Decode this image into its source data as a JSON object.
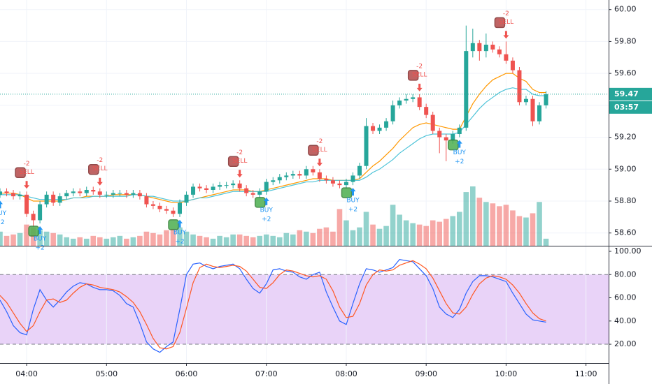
{
  "chart_data": {
    "type": "candlestick",
    "x": [
      "03:40",
      "03:45",
      "03:50",
      "03:55",
      "04:00",
      "04:05",
      "04:10",
      "04:15",
      "04:20",
      "04:25",
      "04:30",
      "04:35",
      "04:40",
      "04:45",
      "04:50",
      "04:55",
      "05:00",
      "05:05",
      "05:10",
      "05:15",
      "05:20",
      "05:25",
      "05:30",
      "05:35",
      "05:40",
      "05:45",
      "05:50",
      "05:55",
      "06:00",
      "06:05",
      "06:10",
      "06:15",
      "06:20",
      "06:25",
      "06:30",
      "06:35",
      "06:40",
      "06:45",
      "06:50",
      "06:55",
      "07:00",
      "07:05",
      "07:10",
      "07:15",
      "07:20",
      "07:25",
      "07:30",
      "07:35",
      "07:40",
      "07:45",
      "07:50",
      "07:55",
      "08:00",
      "08:05",
      "08:10",
      "08:15",
      "08:20",
      "08:25",
      "08:30",
      "08:35",
      "08:40",
      "08:45",
      "08:50",
      "08:55",
      "09:00",
      "09:05",
      "09:10",
      "09:15",
      "09:20",
      "09:25",
      "09:30",
      "09:35",
      "09:40",
      "09:45",
      "09:50",
      "09:55",
      "10:00",
      "10:05",
      "10:10",
      "10:15",
      "10:20",
      "10:25",
      "10:30"
    ],
    "open": [
      58.84,
      58.86,
      58.85,
      58.83,
      58.84,
      58.72,
      58.68,
      58.78,
      58.84,
      58.79,
      58.83,
      58.85,
      58.86,
      58.85,
      58.87,
      58.86,
      58.84,
      58.84,
      58.85,
      58.85,
      58.84,
      58.85,
      58.83,
      58.78,
      58.77,
      58.75,
      58.74,
      58.72,
      58.79,
      58.84,
      58.89,
      58.88,
      58.87,
      58.89,
      58.9,
      58.9,
      58.91,
      58.88,
      58.85,
      58.84,
      58.86,
      58.92,
      58.93,
      58.95,
      58.96,
      58.97,
      58.96,
      59.0,
      58.98,
      58.94,
      58.93,
      58.91,
      58.9,
      58.92,
      58.96,
      59.02,
      59.27,
      59.24,
      59.26,
      59.3,
      59.4,
      59.43,
      59.44,
      59.45,
      59.39,
      59.34,
      59.24,
      59.2,
      59.18,
      59.22,
      59.26,
      59.74,
      59.79,
      59.74,
      59.78,
      59.75,
      59.72,
      59.68,
      59.62,
      59.42,
      59.44,
      59.3,
      59.4
    ],
    "high": [
      58.88,
      58.88,
      58.87,
      58.86,
      58.86,
      58.74,
      58.8,
      58.86,
      58.86,
      58.85,
      58.87,
      58.88,
      58.88,
      58.89,
      58.89,
      58.88,
      58.86,
      58.87,
      58.87,
      58.87,
      58.87,
      58.87,
      58.85,
      58.8,
      58.79,
      58.77,
      58.76,
      58.81,
      58.86,
      58.91,
      58.91,
      58.9,
      58.91,
      58.92,
      58.92,
      58.93,
      58.93,
      58.9,
      58.87,
      58.88,
      58.94,
      58.95,
      58.97,
      58.98,
      58.99,
      58.99,
      59.02,
      59.02,
      59.0,
      58.96,
      58.95,
      58.93,
      58.94,
      58.98,
      59.04,
      59.32,
      59.29,
      59.28,
      59.32,
      59.43,
      59.45,
      59.47,
      59.47,
      59.47,
      59.41,
      59.36,
      59.26,
      59.22,
      59.24,
      59.28,
      59.9,
      59.88,
      59.81,
      59.85,
      59.8,
      59.77,
      59.8,
      59.7,
      59.64,
      59.46,
      59.46,
      59.42,
      59.49
    ],
    "low": [
      58.82,
      58.83,
      58.81,
      58.81,
      58.7,
      58.64,
      58.66,
      58.76,
      58.77,
      58.77,
      58.81,
      58.83,
      58.83,
      58.83,
      58.84,
      58.82,
      58.82,
      58.82,
      58.83,
      58.82,
      58.82,
      58.81,
      58.76,
      58.75,
      58.73,
      58.72,
      58.7,
      58.7,
      58.77,
      58.82,
      58.86,
      58.85,
      58.85,
      58.87,
      58.88,
      58.88,
      58.86,
      58.83,
      58.82,
      58.82,
      58.84,
      58.9,
      58.91,
      58.93,
      58.94,
      58.94,
      58.94,
      58.96,
      58.92,
      58.91,
      58.89,
      58.88,
      58.88,
      58.9,
      58.94,
      59.0,
      59.22,
      59.22,
      59.24,
      59.28,
      59.38,
      59.41,
      59.42,
      59.37,
      59.32,
      59.22,
      59.1,
      59.05,
      59.16,
      59.2,
      59.24,
      59.7,
      59.68,
      59.7,
      59.73,
      59.7,
      59.66,
      59.6,
      59.4,
      59.4,
      59.27,
      59.28,
      59.38
    ],
    "close": [
      58.86,
      58.85,
      58.83,
      58.84,
      58.72,
      58.68,
      58.78,
      58.84,
      58.79,
      58.83,
      58.85,
      58.86,
      58.85,
      58.87,
      58.86,
      58.84,
      58.84,
      58.85,
      58.85,
      58.84,
      58.85,
      58.83,
      58.78,
      58.77,
      58.75,
      58.74,
      58.72,
      58.79,
      58.84,
      58.89,
      58.88,
      58.87,
      58.89,
      58.9,
      58.9,
      58.91,
      58.88,
      58.85,
      58.84,
      58.86,
      58.92,
      58.93,
      58.95,
      58.96,
      58.97,
      58.96,
      59.0,
      58.98,
      58.94,
      58.93,
      58.91,
      58.9,
      58.92,
      58.96,
      59.02,
      59.27,
      59.24,
      59.26,
      59.3,
      59.4,
      59.43,
      59.44,
      59.45,
      59.39,
      59.34,
      59.24,
      59.2,
      59.18,
      59.22,
      59.26,
      59.74,
      59.79,
      59.74,
      59.78,
      59.75,
      59.72,
      59.68,
      59.62,
      59.42,
      59.44,
      59.3,
      59.4,
      59.47
    ],
    "volume": [
      20,
      14,
      16,
      18,
      30,
      26,
      22,
      20,
      18,
      16,
      12,
      10,
      12,
      10,
      14,
      12,
      10,
      12,
      14,
      10,
      12,
      14,
      20,
      18,
      16,
      22,
      24,
      26,
      20,
      16,
      14,
      12,
      10,
      14,
      12,
      16,
      16,
      14,
      12,
      14,
      16,
      14,
      12,
      18,
      16,
      22,
      20,
      18,
      24,
      26,
      20,
      52,
      36,
      22,
      26,
      48,
      30,
      24,
      28,
      58,
      44,
      36,
      32,
      30,
      28,
      36,
      34,
      38,
      42,
      48,
      76,
      84,
      68,
      62,
      60,
      56,
      58,
      50,
      42,
      40,
      46,
      62,
      10
    ],
    "up_color": "#26a69a",
    "down_color": "#ef5350",
    "moving_averages": [
      {
        "color": "#ff9800",
        "values": [
          58.85,
          58.85,
          58.85,
          58.84,
          58.82,
          58.8,
          58.8,
          58.8,
          58.8,
          58.8,
          58.81,
          58.82,
          58.82,
          58.83,
          58.83,
          58.83,
          58.83,
          58.84,
          58.84,
          58.84,
          58.84,
          58.84,
          58.83,
          58.82,
          58.81,
          58.8,
          58.79,
          58.79,
          58.8,
          58.81,
          58.82,
          58.83,
          58.84,
          58.85,
          58.86,
          58.87,
          58.87,
          58.87,
          58.86,
          58.86,
          58.87,
          58.88,
          58.89,
          58.9,
          58.91,
          58.92,
          58.93,
          58.94,
          58.94,
          58.94,
          58.93,
          58.93,
          58.93,
          58.93,
          58.94,
          58.98,
          59.02,
          59.05,
          59.09,
          59.13,
          59.18,
          59.22,
          59.26,
          59.28,
          59.29,
          59.28,
          59.27,
          59.26,
          59.25,
          59.25,
          59.33,
          59.41,
          59.47,
          59.52,
          59.56,
          59.58,
          59.6,
          59.6,
          59.57,
          59.55,
          59.5,
          59.48,
          59.48
        ]
      },
      {
        "color": "#4dc3d8",
        "values": [
          58.84,
          58.84,
          58.84,
          58.84,
          58.83,
          58.82,
          58.81,
          58.81,
          58.81,
          58.81,
          58.81,
          58.82,
          58.82,
          58.82,
          58.83,
          58.83,
          58.83,
          58.83,
          58.83,
          58.83,
          58.84,
          58.84,
          58.83,
          58.83,
          58.82,
          58.81,
          58.8,
          58.8,
          58.8,
          58.81,
          58.82,
          58.82,
          58.83,
          58.84,
          58.85,
          58.86,
          58.86,
          58.86,
          58.86,
          58.86,
          58.86,
          58.87,
          58.88,
          58.89,
          58.9,
          58.91,
          58.92,
          58.92,
          58.93,
          58.93,
          58.93,
          58.93,
          58.93,
          58.93,
          58.93,
          58.95,
          58.98,
          59.0,
          59.03,
          59.06,
          59.1,
          59.13,
          59.16,
          59.19,
          59.21,
          59.22,
          59.22,
          59.22,
          59.22,
          59.23,
          59.28,
          59.33,
          59.38,
          59.42,
          59.45,
          59.48,
          59.5,
          59.51,
          59.5,
          59.5,
          59.47,
          59.46,
          59.46
        ]
      }
    ],
    "signals": [
      {
        "time": "03:40",
        "label": "BUY",
        "qty": "+2"
      },
      {
        "time": "04:00",
        "label": "SELL",
        "qty": "-2"
      },
      {
        "time": "04:10",
        "label": "BUY",
        "qty": "+2"
      },
      {
        "time": "04:55",
        "label": "SELL",
        "qty": "-2"
      },
      {
        "time": "05:55",
        "label": "BUY",
        "qty": "+2"
      },
      {
        "time": "06:40",
        "label": "SELL",
        "qty": "-2"
      },
      {
        "time": "07:00",
        "label": "BUY",
        "qty": "+2"
      },
      {
        "time": "07:40",
        "label": "SELL",
        "qty": "-2"
      },
      {
        "time": "08:05",
        "label": "BUY",
        "qty": "+2"
      },
      {
        "time": "08:55",
        "label": "SELL",
        "qty": "-2"
      },
      {
        "time": "09:25",
        "label": "BUY",
        "qty": "+2"
      },
      {
        "time": "10:00",
        "label": "SELL",
        "qty": "-2"
      }
    ],
    "last_price": 59.47,
    "countdown": "03:57",
    "xlim": [
      "03:40",
      "11:17"
    ],
    "xticks": [
      "04:00",
      "05:00",
      "06:00",
      "07:00",
      "08:00",
      "09:00",
      "10:00",
      "11:00"
    ],
    "ylim": [
      58.52,
      60.06
    ],
    "yticks": [
      {
        "value": 58.6,
        "label": "58.60"
      },
      {
        "value": 58.8,
        "label": "58.80"
      },
      {
        "value": 59,
        "label": "59.00"
      },
      {
        "value": 59.2,
        "label": "59.20"
      },
      {
        "value": 59.4,
        "label": "59.40"
      },
      {
        "value": 59.6,
        "label": "59.60"
      },
      {
        "value": 59.8,
        "label": "59.80"
      },
      {
        "value": 60,
        "label": "60.00"
      }
    ],
    "grid": true,
    "indicator": {
      "type": "line",
      "ylim": [
        3.8,
        104.8
      ],
      "yticks": [
        {
          "value": 20,
          "label": "20.00"
        },
        {
          "value": 40,
          "label": "40.00"
        },
        {
          "value": 60,
          "label": "60.00"
        },
        {
          "value": 80,
          "label": "80.00"
        },
        {
          "value": 100,
          "label": "100.00"
        }
      ],
      "band": [
        20,
        80
      ],
      "band_color": "#e1c4f5",
      "series": [
        {
          "color": "#2962ff",
          "values": [
            58,
            48,
            36,
            30,
            28,
            50,
            67,
            58,
            52,
            58,
            65,
            70,
            73,
            72,
            69,
            67,
            67,
            66,
            62,
            55,
            52,
            38,
            22,
            16,
            13,
            18,
            22,
            50,
            80,
            89,
            90,
            87,
            85,
            87,
            88,
            89,
            85,
            76,
            68,
            64,
            72,
            84,
            85,
            83,
            82,
            78,
            76,
            80,
            82,
            65,
            52,
            40,
            37,
            55,
            72,
            85,
            84,
            82,
            84,
            86,
            93,
            92,
            91,
            85,
            79,
            68,
            52,
            46,
            43,
            50,
            64,
            74,
            79,
            79,
            78,
            76,
            74,
            64,
            55,
            46,
            41,
            40,
            39
          ]
        },
        {
          "color": "#ff5722",
          "values": [
            62,
            56,
            47,
            38,
            31,
            36,
            48,
            58,
            59,
            56,
            58,
            64,
            69,
            72,
            71,
            69,
            68,
            67,
            65,
            61,
            56,
            48,
            37,
            25,
            17,
            16,
            18,
            30,
            51,
            73,
            86,
            89,
            87,
            86,
            87,
            88,
            87,
            83,
            76,
            69,
            68,
            73,
            80,
            84,
            83,
            81,
            79,
            78,
            79,
            76,
            66,
            52,
            43,
            44,
            55,
            71,
            80,
            84,
            83,
            84,
            88,
            90,
            92,
            89,
            85,
            77,
            66,
            55,
            47,
            46,
            52,
            63,
            72,
            77,
            79,
            78,
            76,
            71,
            64,
            55,
            47,
            42,
            40
          ]
        }
      ]
    }
  }
}
